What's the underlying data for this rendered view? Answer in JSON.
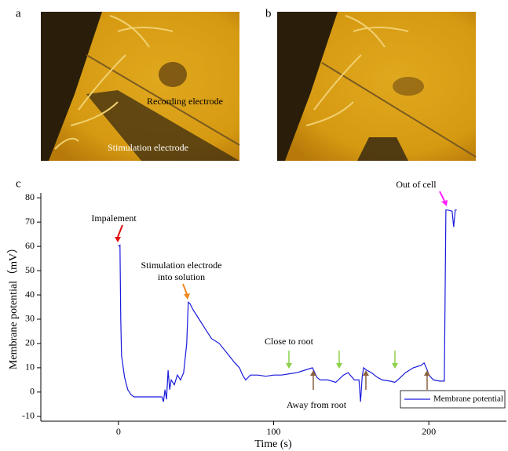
{
  "panels": [
    {
      "label": "a",
      "annotations": [
        "Recording electrode",
        "Stimulation electrode"
      ]
    },
    {
      "label": "b"
    }
  ],
  "chart_data": {
    "type": "line",
    "panel_label": "c",
    "x_label": "Time (s)",
    "y_label": "Membrane potential（mV）",
    "xlim": [
      -50,
      250
    ],
    "xticks": [
      0,
      100,
      200
    ],
    "ylim": [
      -12,
      82
    ],
    "yticks": [
      -10,
      0,
      10,
      20,
      30,
      40,
      50,
      60,
      70,
      80
    ],
    "legend": "lower right",
    "annotations": [
      "Impalement",
      "Stimulation electrode",
      "into solution",
      "Close to root",
      "Away from root",
      "Out of cell"
    ],
    "series": [
      {
        "name": "Membrane potential",
        "color": "#1a1adc",
        "x": [
          0,
          1,
          1.5,
          2,
          4,
          6,
          8,
          10,
          12,
          15,
          20,
          25,
          28,
          29,
          30,
          31,
          32,
          33,
          34,
          36,
          38,
          40,
          42,
          44,
          45,
          46,
          48,
          52,
          56,
          60,
          65,
          70,
          75,
          78,
          80,
          82,
          85,
          90,
          95,
          100,
          105,
          110,
          115,
          120,
          125,
          128,
          130,
          135,
          140,
          145,
          148,
          152,
          155,
          156,
          157,
          158,
          160,
          163,
          167,
          170,
          175,
          178,
          180,
          185,
          190,
          195,
          197,
          199,
          200,
          203,
          207,
          210,
          211,
          212,
          215,
          216,
          217,
          218
        ],
        "values": [
          60,
          60.5,
          30,
          15,
          6,
          1,
          -1,
          -2,
          -2,
          -2,
          -2,
          -2,
          -2,
          -4,
          1,
          -3,
          9,
          1,
          5,
          3,
          7,
          5,
          8,
          20,
          37,
          36.5,
          34,
          30,
          26,
          22,
          20,
          16,
          12,
          10,
          7,
          5,
          7,
          7,
          6.5,
          7,
          7,
          7.5,
          8,
          9,
          10,
          6,
          5,
          5,
          4,
          7,
          8,
          5,
          5,
          -4,
          6,
          10,
          9,
          8,
          6,
          5,
          4.5,
          4,
          5,
          8,
          10,
          11,
          12,
          9,
          7,
          5,
          4.5,
          4.5,
          75,
          75,
          74.5,
          68,
          75,
          75
        ]
      }
    ]
  }
}
